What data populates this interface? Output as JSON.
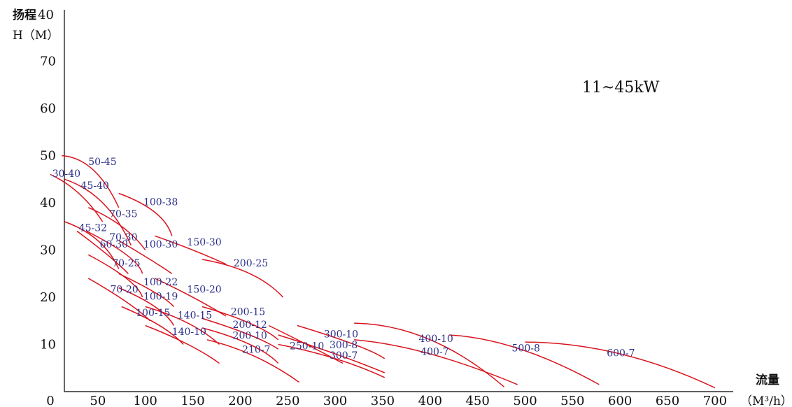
{
  "chart_data": {
    "type": "line",
    "title": "",
    "note": "11~45kW",
    "xlabel": "流量",
    "xunit": "（M³/h）",
    "ylabel": "扬程",
    "yunit": "H（M）",
    "xlim": [
      0,
      720
    ],
    "ylim": [
      0,
      80
    ],
    "xticks": [
      0,
      50,
      100,
      150,
      200,
      250,
      300,
      350,
      400,
      450,
      500,
      550,
      600,
      650,
      700
    ],
    "yticks": [
      10,
      20,
      30,
      40,
      50,
      60,
      70
    ],
    "ytop_label": "40",
    "grid": false,
    "legend": "none",
    "line_color": "#d9141e",
    "label_color": "#2b2f8a",
    "series": [
      {
        "name": "50-45",
        "x": [
          12,
          45,
          72
        ],
        "y": [
          50,
          47,
          39
        ],
        "label_at": [
          40,
          48
        ]
      },
      {
        "name": "30-40",
        "x": [
          0,
          30,
          55
        ],
        "y": [
          46,
          42,
          36
        ],
        "label_at": [
          2,
          45.5
        ]
      },
      {
        "name": "45-40",
        "x": [
          15,
          55,
          85
        ],
        "y": [
          45,
          40,
          31
        ],
        "label_at": [
          32,
          43
        ]
      },
      {
        "name": "100-38",
        "x": [
          72,
          110,
          128
        ],
        "y": [
          42,
          38,
          33
        ],
        "label_at": [
          98,
          39.5
        ]
      },
      {
        "name": "70-35",
        "x": [
          40,
          75,
          100
        ],
        "y": [
          39,
          35,
          30
        ],
        "label_at": [
          62,
          37
        ]
      },
      {
        "name": "45-32",
        "x": [
          15,
          50,
          72
        ],
        "y": [
          36,
          32,
          26
        ],
        "label_at": [
          30,
          34
        ]
      },
      {
        "name": "70-30",
        "x": [
          38,
          80,
          97
        ],
        "y": [
          34,
          29,
          25
        ],
        "label_at": [
          62,
          32
        ]
      },
      {
        "name": "60-30",
        "x": [
          28,
          60,
          82
        ],
        "y": [
          34,
          29,
          25
        ],
        "label_at": [
          52,
          30.5
        ]
      },
      {
        "name": "100-30",
        "x": [
          72,
          105,
          128
        ],
        "y": [
          32,
          28,
          25
        ],
        "label_at": [
          98,
          30.5
        ]
      },
      {
        "name": "150-30",
        "x": [
          110,
          150,
          185
        ],
        "y": [
          33,
          30,
          27
        ],
        "label_at": [
          144,
          31
        ]
      },
      {
        "name": "200-25",
        "x": [
          160,
          210,
          245
        ],
        "y": [
          28,
          25,
          20
        ],
        "label_at": [
          193,
          26.5
        ]
      },
      {
        "name": "70-25",
        "x": [
          40,
          80,
          97
        ],
        "y": [
          29,
          24,
          20
        ],
        "label_at": [
          65,
          26.5
        ]
      },
      {
        "name": "100-22",
        "x": [
          72,
          110,
          130
        ],
        "y": [
          25,
          21,
          18
        ],
        "label_at": [
          98,
          22.5
        ]
      },
      {
        "name": "150-20",
        "x": [
          110,
          150,
          185
        ],
        "y": [
          24,
          20,
          16
        ],
        "label_at": [
          144,
          21
        ]
      },
      {
        "name": "70-20",
        "x": [
          40,
          80,
          105
        ],
        "y": [
          24,
          19,
          15
        ],
        "label_at": [
          63,
          21
        ]
      },
      {
        "name": "100-19",
        "x": [
          72,
          110,
          130
        ],
        "y": [
          22,
          18,
          14
        ],
        "label_at": [
          98,
          19.5
        ]
      },
      {
        "name": "100-15",
        "x": [
          75,
          115,
          140
        ],
        "y": [
          18,
          14,
          10
        ],
        "label_at": [
          90,
          16
        ]
      },
      {
        "name": "140-15",
        "x": [
          100,
          145,
          178
        ],
        "y": [
          18,
          14.5,
          10
        ],
        "label_at": [
          134,
          15.5
        ]
      },
      {
        "name": "200-15",
        "x": [
          160,
          210,
          240
        ],
        "y": [
          18,
          14.5,
          11
        ],
        "label_at": [
          190,
          16.2
        ]
      },
      {
        "name": "200-12",
        "x": [
          160,
          210,
          240
        ],
        "y": [
          15.5,
          12,
          9
        ],
        "label_at": [
          192,
          13.5
        ]
      },
      {
        "name": "140-10",
        "x": [
          100,
          145,
          178
        ],
        "y": [
          14,
          10,
          6
        ],
        "label_at": [
          128,
          12
        ]
      },
      {
        "name": "200-10",
        "x": [
          160,
          210,
          240
        ],
        "y": [
          13.5,
          10,
          6
        ],
        "label_at": [
          192,
          11.2
        ]
      },
      {
        "name": "210-7",
        "x": [
          165,
          215,
          262
        ],
        "y": [
          11,
          7.5,
          2
        ],
        "label_at": [
          202,
          8.2
        ]
      },
      {
        "name": "250-10",
        "x": [
          230,
          270,
          308
        ],
        "y": [
          14,
          10,
          6
        ],
        "label_at": [
          252,
          9
        ]
      },
      {
        "name": "300-10",
        "x": [
          260,
          320,
          352
        ],
        "y": [
          14,
          10,
          7
        ],
        "label_at": [
          288,
          11.5
        ]
      },
      {
        "name": "300-8",
        "x": [
          240,
          300,
          352
        ],
        "y": [
          12,
          8,
          4
        ],
        "label_at": [
          294,
          9.2
        ]
      },
      {
        "name": "300-7",
        "x": [
          240,
          300,
          352
        ],
        "y": [
          10,
          7,
          3
        ],
        "label_at": [
          294,
          7
        ]
      },
      {
        "name": "400-10",
        "x": [
          320,
          400,
          478
        ],
        "y": [
          14.5,
          11,
          1
        ],
        "label_at": [
          388,
          10.5
        ]
      },
      {
        "name": "400-7",
        "x": [
          320,
          400,
          492
        ],
        "y": [
          11,
          8,
          1.5
        ],
        "label_at": [
          390,
          7.8
        ]
      },
      {
        "name": "500-8",
        "x": [
          420,
          495,
          578
        ],
        "y": [
          12,
          9,
          1.5
        ],
        "label_at": [
          486,
          8.5
        ]
      },
      {
        "name": "600-7",
        "x": [
          500,
          600,
          700
        ],
        "y": [
          10.5,
          8,
          0.8
        ],
        "label_at": [
          586,
          7.5
        ]
      }
    ]
  }
}
